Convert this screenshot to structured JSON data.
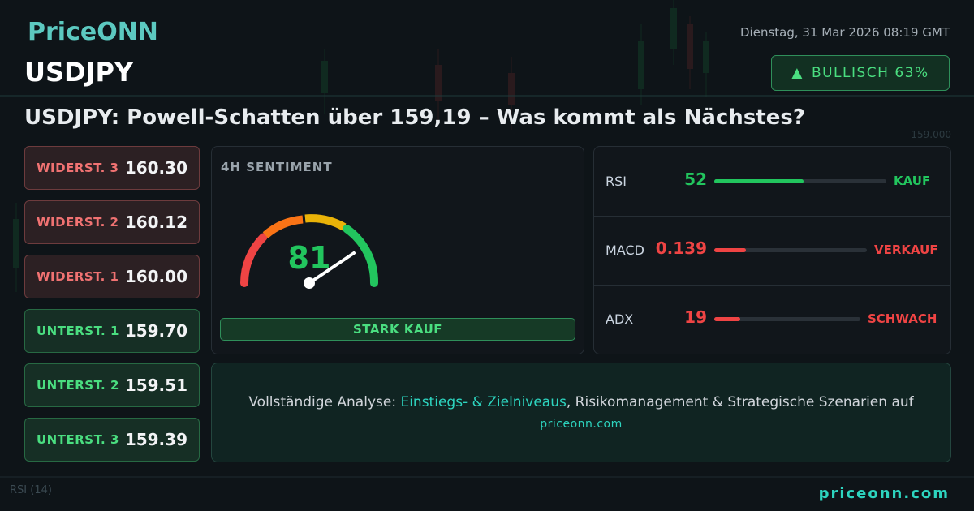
{
  "header": {
    "logo": "PriceONN",
    "date": "Dienstag, 31 Mar 2026 08:19 GMT",
    "symbol": "USDJPY",
    "badge": "BULLISCH 63%"
  },
  "headline": "USDJPY: Powell-Schatten über 159,19 – Was kommt als Nächstes?",
  "levels": [
    {
      "label": "WIDERST. 3",
      "value": "160.30",
      "color": "#f07272"
    },
    {
      "label": "WIDERST. 2",
      "value": "160.12",
      "color": "#f07272"
    },
    {
      "label": "WIDERST. 1",
      "value": "160.00",
      "color": "#f07272"
    },
    {
      "label": "UNTERST. 1",
      "value": "159.70",
      "color": "#4ade80"
    },
    {
      "label": "UNTERST. 2",
      "value": "159.51",
      "color": "#4ade80"
    },
    {
      "label": "UNTERST. 3",
      "value": "159.39",
      "color": "#4ade80"
    }
  ],
  "sentiment": {
    "title": "4H SENTIMENT",
    "score": "81",
    "signal": "STARK KAUF"
  },
  "indicators": [
    {
      "name": "RSI",
      "value": "52",
      "signal": "KAUF",
      "color": "#22c55e"
    },
    {
      "name": "MACD",
      "value": "0.139",
      "signal": "VERKAUF",
      "color": "#ef4444"
    },
    {
      "name": "ADX",
      "value": "19",
      "signal": "SCHWACH",
      "color": "#ef4444"
    }
  ],
  "cta": {
    "lead": "Vollständige Analyse:",
    "highlight": "Einstiegs- & Zielniveaus",
    "rest": ", Risikomanagement & Strategische Szenarien auf",
    "site": "priceonn.com"
  },
  "background": {
    "price_label": "159.000",
    "indicator": "RSI (14)"
  },
  "footer": {
    "site": "priceonn.com"
  }
}
